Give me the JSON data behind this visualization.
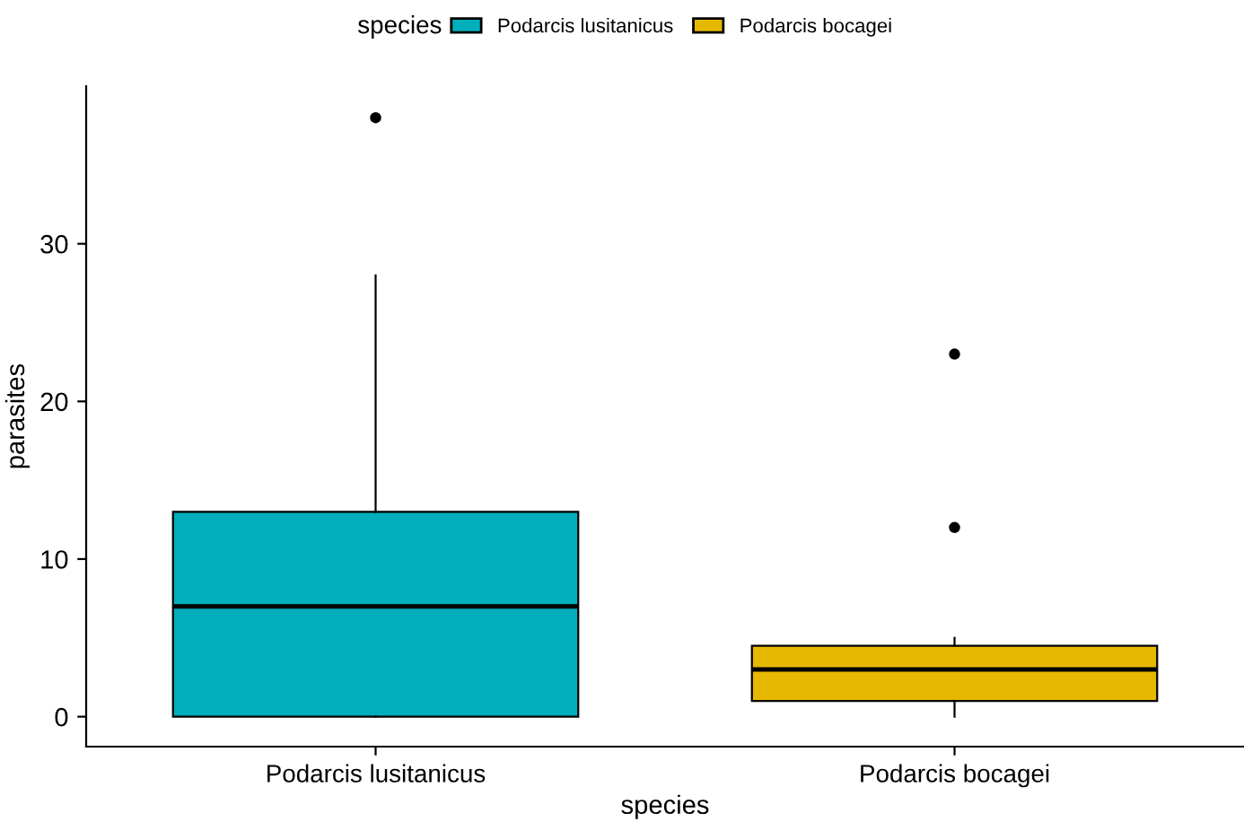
{
  "chart_data": {
    "type": "box",
    "xlabel": "species",
    "ylabel": "parasites",
    "legend_title": "species",
    "legend": "top",
    "categories": [
      "Podarcis lusitanicus",
      "Podarcis bocagei"
    ],
    "series": [
      {
        "name": "Podarcis lusitanicus",
        "color": "#00afbb",
        "boxes": [
          {
            "low": 0,
            "q1": 0,
            "median": 7,
            "q3": 13,
            "high": 28,
            "outliers": [
              38
            ]
          },
          null
        ]
      },
      {
        "name": "Podarcis bocagei",
        "color": "#e7b800",
        "boxes": [
          null,
          {
            "low": 0,
            "q1": 1,
            "median": 3,
            "q3": 4.5,
            "high": 5,
            "outliers": [
              12,
              23
            ]
          }
        ]
      }
    ],
    "ylim": [
      -1.9,
      40
    ],
    "yticks": [
      0,
      10,
      20,
      30
    ],
    "grid": false
  }
}
